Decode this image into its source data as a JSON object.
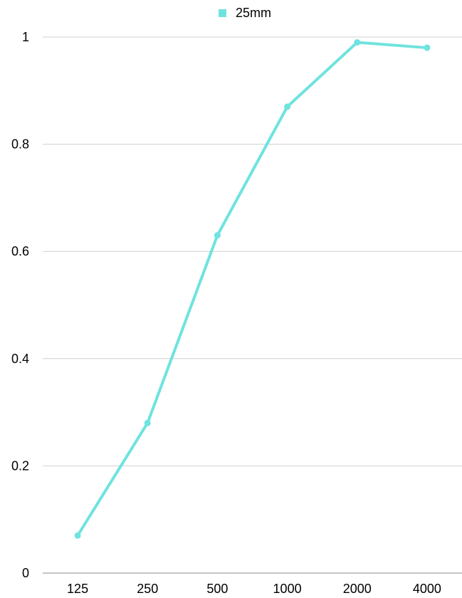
{
  "chart_data": {
    "type": "line",
    "title": "",
    "xlabel": "",
    "ylabel": "",
    "categories": [
      "125",
      "250",
      "500",
      "1000",
      "2000",
      "4000"
    ],
    "series": [
      {
        "name": "25mm",
        "values": [
          0.07,
          0.28,
          0.63,
          0.87,
          0.99,
          0.98
        ]
      }
    ],
    "ylim": [
      0,
      1
    ],
    "yticks": [
      "0",
      "0.2",
      "0.4",
      "0.6",
      "0.8",
      "1"
    ],
    "grid": true,
    "legend": "top-center",
    "colors": {
      "series": "#6fe3df",
      "grid": "#d0d0d0",
      "axis": "#888888"
    }
  }
}
